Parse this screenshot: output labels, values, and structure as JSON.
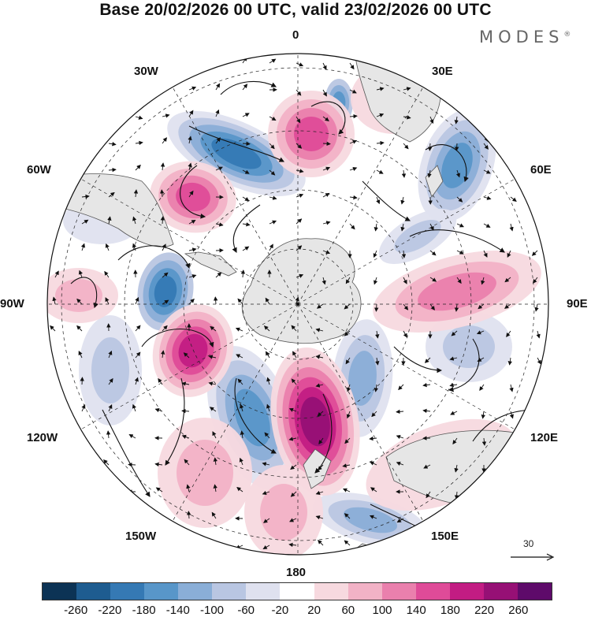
{
  "title": "Base 20/02/2026 00 UTC, valid 23/02/2026 00 UTC",
  "brand": "MODES",
  "brand_mark": "®",
  "longitude_labels": {
    "n0": "0",
    "e30": "30E",
    "e60": "60E",
    "e90": "90E",
    "e120": "120E",
    "e150": "150E",
    "s180": "180",
    "w150": "150W",
    "w120": "120W",
    "w90": "90W",
    "w60": "60W",
    "w30": "30W"
  },
  "reference_vector": "30",
  "colorbar": {
    "colors": [
      "#0c3355",
      "#1e5c90",
      "#3579b4",
      "#5896c9",
      "#8aaed7",
      "#b9c6e2",
      "#dfe1ef",
      "#ffffff",
      "#f7d9df",
      "#f2b2c6",
      "#ea80ad",
      "#df4b98",
      "#c21c83",
      "#961075",
      "#5e0a6a"
    ],
    "ticks": [
      "-260",
      "-220",
      "-180",
      "-140",
      "-100",
      "-60",
      "-20",
      "20",
      "60",
      "100",
      "140",
      "180",
      "220",
      "260"
    ]
  },
  "colors": {
    "land": "#e6e6e6",
    "coast": "#555555",
    "grid": "#222222",
    "stream": "#111111"
  }
}
